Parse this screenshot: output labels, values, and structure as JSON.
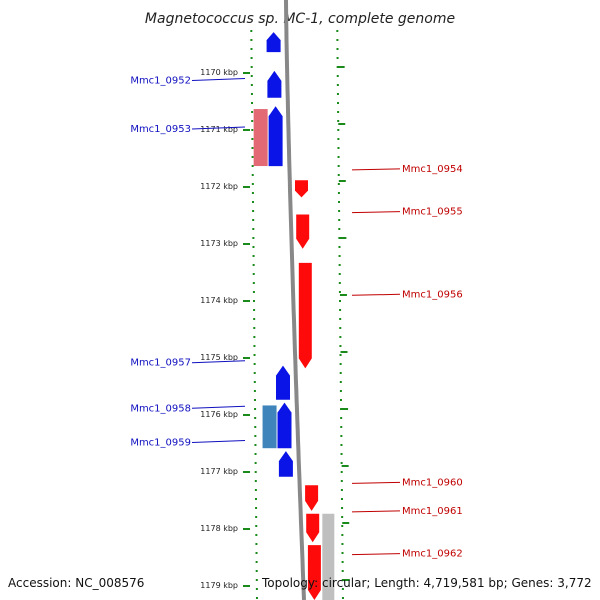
{
  "title": "Magnetococcus sp. MC-1, complete genome",
  "accession": "Accession: NC_008576",
  "topology": "Topology: circular; Length: 4,719,581 bp; Genes: 3,772",
  "scale": {
    "min_kbp": 1169.3,
    "max_kbp": 1179.3,
    "ticks": [
      "1170 kbp",
      "1171 kbp",
      "1172 kbp",
      "1173 kbp",
      "1174 kbp",
      "1175 kbp",
      "1176 kbp",
      "1177 kbp",
      "1178 kbp",
      "1179 kbp"
    ]
  },
  "colors": {
    "plus_strand_gene": "#0a14e6",
    "minus_strand_gene": "#ff0a0a",
    "plus_label": "#1010c0",
    "minus_label": "#c00000",
    "tick_green": "#1a8a1a",
    "backbone_gray": "#888888",
    "pink_feature": "#e05a66",
    "steel_feature": "#2a78b4",
    "gray_feature": "#b8b8b8"
  },
  "labels": {
    "left": [
      {
        "name": "Mmc1_0952",
        "kbp": 1170.15
      },
      {
        "name": "Mmc1_0953",
        "kbp": 1171.0
      },
      {
        "name": "Mmc1_0957",
        "kbp": 1175.1
      },
      {
        "name": "Mmc1_0958",
        "kbp": 1175.9
      },
      {
        "name": "Mmc1_0959",
        "kbp": 1176.5
      }
    ],
    "right": [
      {
        "name": "Mmc1_0954",
        "kbp": 1171.7
      },
      {
        "name": "Mmc1_0955",
        "kbp": 1172.45
      },
      {
        "name": "Mmc1_0956",
        "kbp": 1173.9
      },
      {
        "name": "Mmc1_0960",
        "kbp": 1177.2
      },
      {
        "name": "Mmc1_0961",
        "kbp": 1177.7
      },
      {
        "name": "Mmc1_0962",
        "kbp": 1178.45
      }
    ]
  },
  "features": [
    {
      "name": "gene-plus-top",
      "strand": "+",
      "start_kbp": 1169.3,
      "end_kbp": 1169.65,
      "color": "#0a14e6"
    },
    {
      "name": "Mmc1_0952",
      "strand": "+",
      "start_kbp": 1169.98,
      "end_kbp": 1170.45,
      "color": "#0a14e6"
    },
    {
      "name": "Mmc1_0953",
      "strand": "+",
      "start_kbp": 1170.6,
      "end_kbp": 1171.65,
      "color": "#0a14e6"
    },
    {
      "name": "pink-feature",
      "strand": "+",
      "start_kbp": 1170.65,
      "end_kbp": 1171.65,
      "color": "#e05a66",
      "track": "outer"
    },
    {
      "name": "Mmc1_0954",
      "strand": "-",
      "start_kbp": 1171.9,
      "end_kbp": 1172.2,
      "color": "#ff0a0a"
    },
    {
      "name": "Mmc1_0955",
      "strand": "-",
      "start_kbp": 1172.5,
      "end_kbp": 1173.1,
      "color": "#ff0a0a"
    },
    {
      "name": "Mmc1_0956",
      "strand": "-",
      "start_kbp": 1173.35,
      "end_kbp": 1175.2,
      "color": "#ff0a0a"
    },
    {
      "name": "Mmc1_0957",
      "strand": "+",
      "start_kbp": 1175.15,
      "end_kbp": 1175.75,
      "color": "#0a14e6"
    },
    {
      "name": "Mmc1_0958",
      "strand": "+",
      "start_kbp": 1175.8,
      "end_kbp": 1176.6,
      "color": "#0a14e6"
    },
    {
      "name": "steel-feature",
      "strand": "+",
      "start_kbp": 1175.85,
      "end_kbp": 1176.6,
      "color": "#2a78b4",
      "track": "outer"
    },
    {
      "name": "Mmc1_0959",
      "strand": "+",
      "start_kbp": 1176.65,
      "end_kbp": 1177.1,
      "color": "#0a14e6"
    },
    {
      "name": "Mmc1_0960",
      "strand": "-",
      "start_kbp": 1177.25,
      "end_kbp": 1177.7,
      "color": "#ff0a0a"
    },
    {
      "name": "Mmc1_0961",
      "strand": "-",
      "start_kbp": 1177.75,
      "end_kbp": 1178.25,
      "color": "#ff0a0a"
    },
    {
      "name": "Mmc1_0962",
      "strand": "-",
      "start_kbp": 1178.3,
      "end_kbp": 1179.3,
      "color": "#ff0a0a"
    },
    {
      "name": "gray-feature",
      "strand": "-",
      "start_kbp": 1177.75,
      "end_kbp": 1179.3,
      "color": "#b8b8b8",
      "track": "outer"
    }
  ]
}
